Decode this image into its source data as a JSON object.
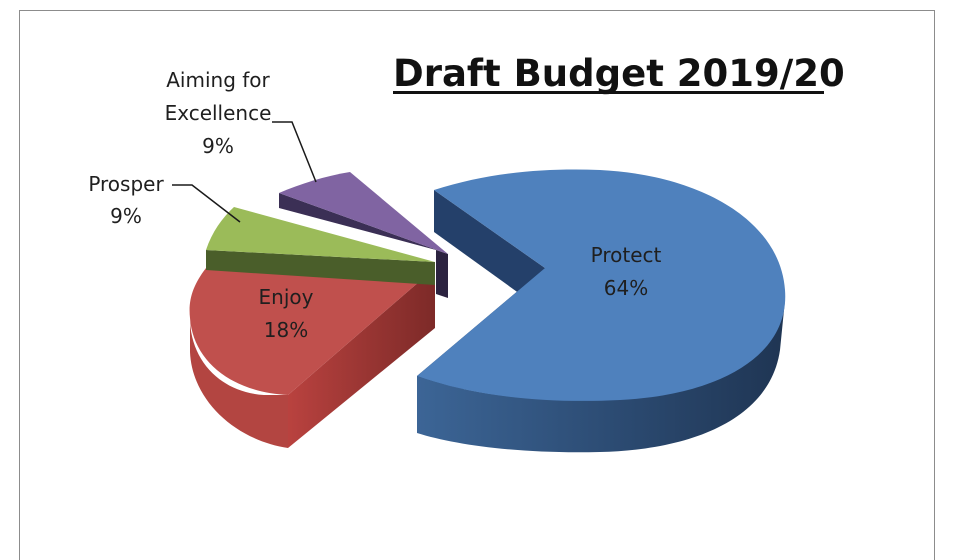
{
  "chart_data": {
    "type": "pie",
    "title": "Draft Budget 2019/20",
    "style": "3d-exploded",
    "slices": [
      {
        "name": "Protect",
        "value": 64,
        "label": "64%",
        "color": "#4f81bd"
      },
      {
        "name": "Enjoy",
        "value": 18,
        "label": "18%",
        "color": "#c0504d"
      },
      {
        "name": "Prosper",
        "value": 9,
        "label": "9%",
        "color": "#9bbb59"
      },
      {
        "name": "Aiming for Excellence",
        "value": 9,
        "label": "9%",
        "color": "#8064a2"
      }
    ]
  },
  "labels": {
    "aiming_line1": "Aiming for",
    "aiming_line2": "Excellence"
  }
}
